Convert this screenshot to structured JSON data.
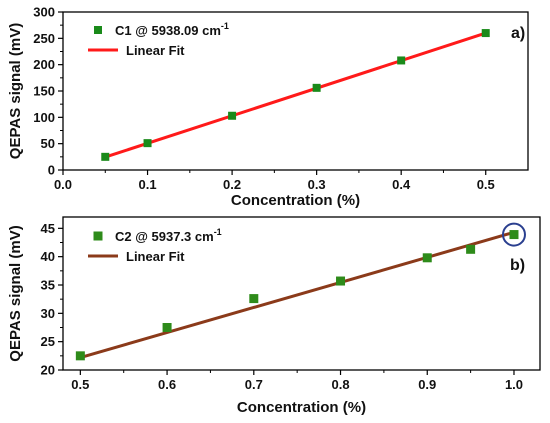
{
  "chart_data": [
    {
      "type": "scatter",
      "panel_label": "a)",
      "xlabel": "Concentration (%)",
      "ylabel": "QEPAS signal (mV)",
      "xlim": [
        0.0,
        0.55
      ],
      "ylim": [
        0,
        300
      ],
      "xticks": [
        "0.0",
        "0.1",
        "0.2",
        "0.3",
        "0.4",
        "0.5"
      ],
      "yticks": [
        "0",
        "50",
        "100",
        "150",
        "200",
        "250",
        "300"
      ],
      "legend_position": "top-left",
      "series": [
        {
          "name": "C1 @ 5938.09 cm",
          "name_superscript": "-1",
          "kind": "scatter",
          "color": "#1a8a1a",
          "x": [
            0.05,
            0.1,
            0.2,
            0.3,
            0.4,
            0.5
          ],
          "y": [
            25,
            51,
            103,
            156,
            208,
            260
          ]
        },
        {
          "name": "Linear Fit",
          "kind": "line",
          "color": "#ff1a1a",
          "x": [
            0.05,
            0.5
          ],
          "y": [
            24.5,
            260
          ]
        }
      ]
    },
    {
      "type": "scatter",
      "panel_label": "b)",
      "xlabel": "Concentration (%)",
      "ylabel": "QEPAS signal (mV)",
      "xlim": [
        0.48,
        1.03
      ],
      "ylim": [
        20,
        47
      ],
      "xticks": [
        "0.5",
        "0.6",
        "0.7",
        "0.8",
        "0.9",
        "1.0"
      ],
      "yticks": [
        "20",
        "25",
        "30",
        "35",
        "40",
        "45"
      ],
      "legend_position": "top-left",
      "highlight_circle_x": 1.0,
      "series": [
        {
          "name": "C2 @ 5937.3 cm",
          "name_superscript": "-1",
          "kind": "scatter",
          "color": "#2e8b1a",
          "x": [
            0.5,
            0.6,
            0.7,
            0.8,
            0.9,
            0.95,
            1.0
          ],
          "y": [
            22.5,
            27.5,
            32.6,
            35.7,
            39.8,
            41.3,
            43.9
          ]
        },
        {
          "name": "Linear Fit",
          "kind": "line",
          "color": "#8b3a1a",
          "x": [
            0.5,
            1.0
          ],
          "y": [
            22.2,
            44.3
          ]
        }
      ]
    }
  ]
}
